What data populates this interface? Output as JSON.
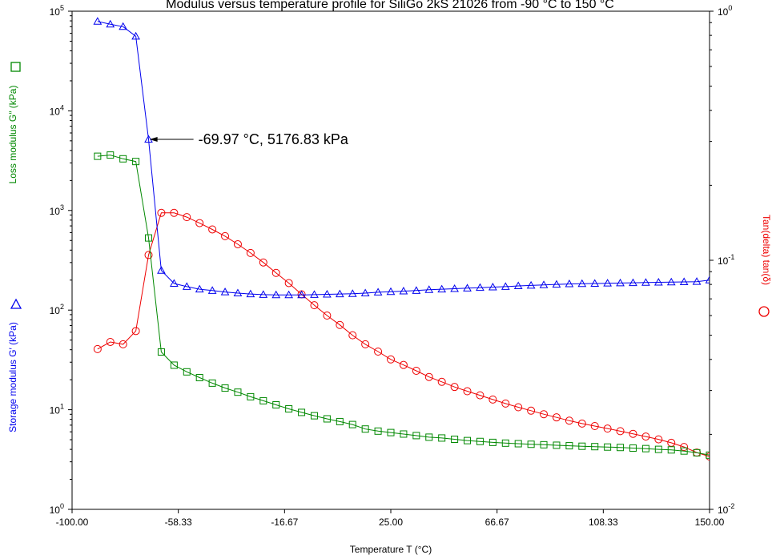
{
  "chart_data": {
    "type": "line",
    "title": "Modulus versus temperature profile for SiliGo 2kS 21026 from -90 °C to 150 °C",
    "xlabel": "Temperature T (°C)",
    "ylabel_left_upper": "Loss modulus G″ (kPa)",
    "ylabel_left_lower": "Storage modulus G′ (kPa)",
    "ylabel_right": "Tan(delta) tan(δ)",
    "xlim": [
      -100,
      150
    ],
    "ylim_left": [
      1,
      100000
    ],
    "ylim_right": [
      0.01,
      1
    ],
    "y_scale": "log",
    "x_ticks": [
      "-100.00",
      "-58.33",
      "-16.67",
      "25.00",
      "66.67",
      "108.33",
      "150.00"
    ],
    "y_left_ticks": [
      {
        "base": "10",
        "exp": "0"
      },
      {
        "base": "10",
        "exp": "1"
      },
      {
        "base": "10",
        "exp": "2"
      },
      {
        "base": "10",
        "exp": "3"
      },
      {
        "base": "10",
        "exp": "4"
      },
      {
        "base": "10",
        "exp": "5"
      }
    ],
    "y_right_ticks": [
      {
        "base": "10",
        "exp": "-2"
      },
      {
        "base": "10",
        "exp": "-1"
      },
      {
        "base": "10",
        "exp": "0"
      }
    ],
    "grid": false,
    "annotation": {
      "text": "-69.97 °C, 5176.83 kPa",
      "x": -69.97,
      "y": 5176.83
    },
    "colors": {
      "storage": "#0000ee",
      "loss": "#008800",
      "tan": "#ee0000"
    },
    "series": [
      {
        "id": "storage",
        "axis": "left",
        "marker": "triangle",
        "x": [
          -90,
          -85,
          -80,
          -75,
          -70,
          -65,
          -60,
          -55,
          -50,
          -45,
          -40,
          -35,
          -30,
          -25,
          -20,
          -15,
          -10,
          -5,
          0,
          5,
          10,
          15,
          20,
          25,
          30,
          35,
          40,
          45,
          50,
          55,
          60,
          65,
          70,
          75,
          80,
          85,
          90,
          95,
          100,
          105,
          110,
          115,
          120,
          125,
          130,
          135,
          140,
          145,
          150
        ],
        "values": [
          79000,
          74000,
          70000,
          56000,
          5176.83,
          250,
          185,
          172,
          162,
          157,
          152,
          148,
          145,
          143,
          142,
          142,
          142,
          143,
          144,
          145,
          146,
          148,
          151,
          153,
          155,
          157,
          160,
          162,
          164,
          166,
          168,
          170,
          172,
          175,
          177,
          179,
          181,
          183,
          184,
          185,
          186,
          187,
          188,
          189,
          190,
          191,
          192,
          193,
          200
        ]
      },
      {
        "id": "loss",
        "axis": "left",
        "marker": "square",
        "x": [
          -90,
          -85,
          -80,
          -75,
          -70,
          -65,
          -60,
          -55,
          -50,
          -45,
          -40,
          -35,
          -30,
          -25,
          -20,
          -15,
          -10,
          -5,
          0,
          5,
          10,
          15,
          20,
          25,
          30,
          35,
          40,
          45,
          50,
          55,
          60,
          65,
          70,
          75,
          80,
          85,
          90,
          95,
          100,
          105,
          110,
          115,
          120,
          125,
          130,
          135,
          140,
          145,
          150
        ],
        "values": [
          3500,
          3600,
          3300,
          3100,
          530,
          38,
          28,
          24,
          21,
          18.5,
          16.5,
          15,
          13.5,
          12.3,
          11.2,
          10.2,
          9.4,
          8.7,
          8.1,
          7.6,
          7.1,
          6.4,
          6.1,
          5.9,
          5.7,
          5.5,
          5.3,
          5.2,
          5.05,
          4.9,
          4.8,
          4.7,
          4.62,
          4.56,
          4.5,
          4.45,
          4.4,
          4.35,
          4.3,
          4.26,
          4.22,
          4.18,
          4.12,
          4.07,
          4.0,
          3.95,
          3.85,
          3.7,
          3.5
        ]
      },
      {
        "id": "tan",
        "axis": "right",
        "marker": "circle",
        "x": [
          -90,
          -85,
          -80,
          -75,
          -70,
          -65,
          -60,
          -55,
          -50,
          -45,
          -40,
          -35,
          -30,
          -25,
          -20,
          -15,
          -10,
          -5,
          0,
          5,
          10,
          15,
          20,
          25,
          30,
          35,
          40,
          45,
          50,
          55,
          60,
          65,
          70,
          75,
          80,
          85,
          90,
          95,
          100,
          105,
          110,
          115,
          120,
          125,
          130,
          135,
          140,
          145,
          150
        ],
        "values": [
          0.044,
          0.047,
          0.046,
          0.052,
          0.105,
          0.155,
          0.155,
          0.149,
          0.141,
          0.133,
          0.125,
          0.116,
          0.107,
          0.098,
          0.089,
          0.081,
          0.073,
          0.066,
          0.06,
          0.055,
          0.05,
          0.046,
          0.043,
          0.04,
          0.038,
          0.036,
          0.034,
          0.0325,
          0.031,
          0.0298,
          0.0287,
          0.0276,
          0.0266,
          0.0257,
          0.0249,
          0.0241,
          0.0234,
          0.0227,
          0.0221,
          0.0216,
          0.0211,
          0.0206,
          0.0201,
          0.0196,
          0.0191,
          0.0185,
          0.0178,
          0.0169,
          0.0163
        ]
      }
    ]
  }
}
